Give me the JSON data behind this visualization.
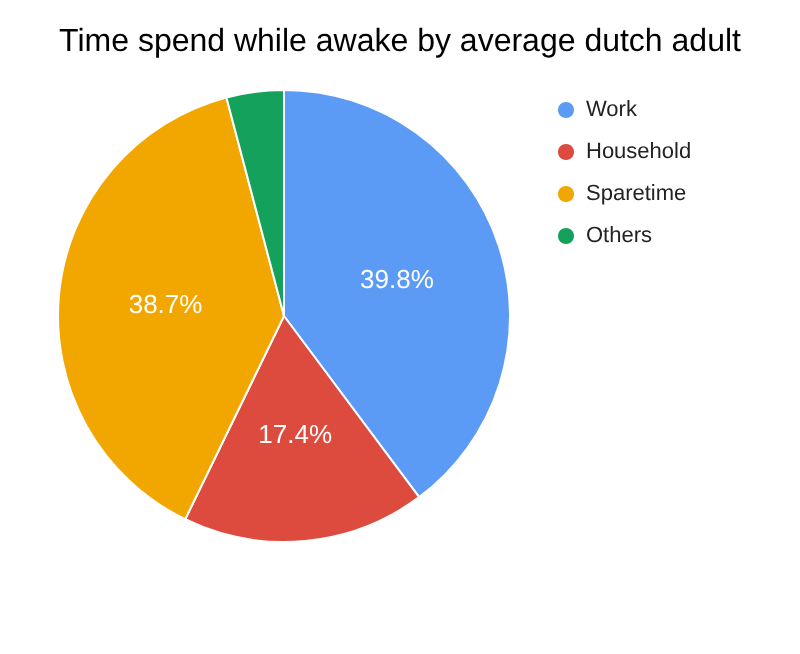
{
  "chart_data": {
    "type": "pie",
    "title": "Time spend while awake by average dutch adult",
    "categories": [
      "Work",
      "Household",
      "Sparetime",
      "Others"
    ],
    "values": [
      39.8,
      17.4,
      38.7,
      4.1
    ],
    "colors": [
      "#5c9bf5",
      "#dd4b3e",
      "#f2a600",
      "#14a15c"
    ],
    "value_labels": [
      "39.8%",
      "17.4%",
      "38.7%",
      null
    ],
    "legend": "top right"
  }
}
